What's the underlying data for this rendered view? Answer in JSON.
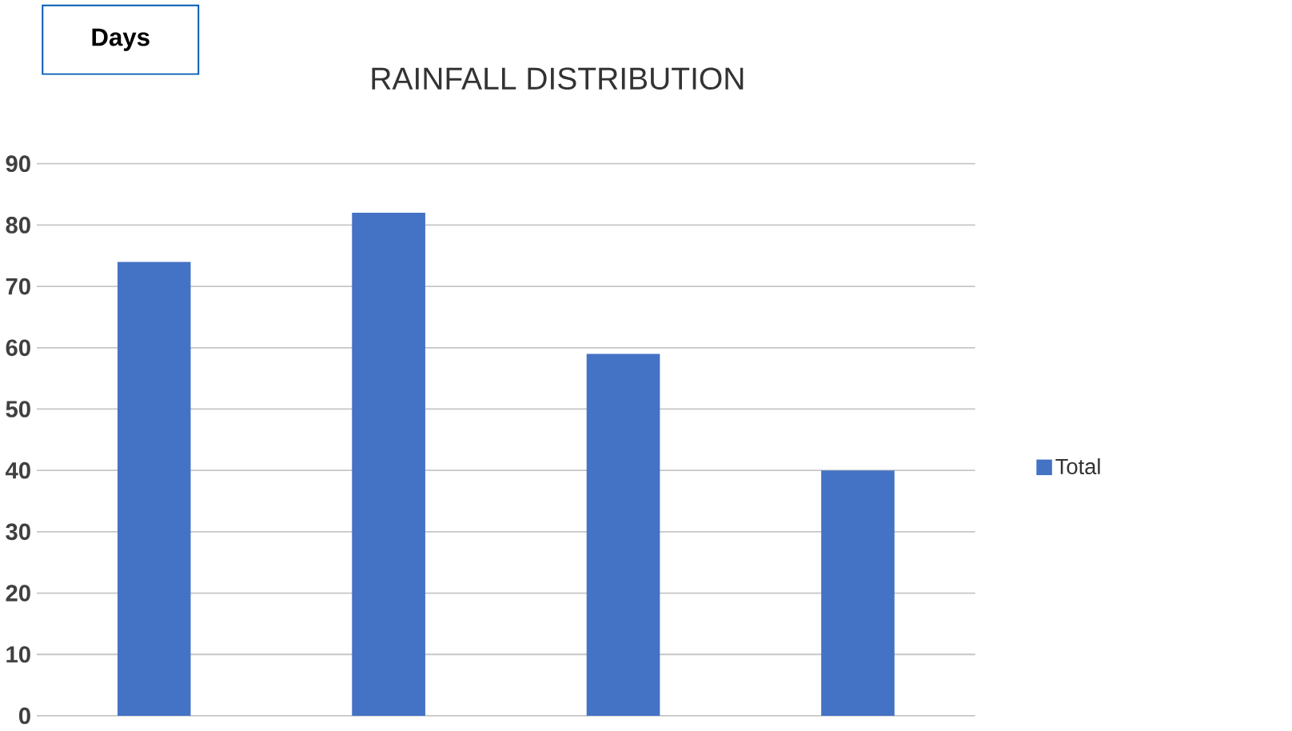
{
  "chart_data": {
    "type": "bar",
    "title": "RAINFALL DISTRIBUTION",
    "ylabel": "Days",
    "categories": [
      null,
      null,
      null,
      null
    ],
    "series": [
      {
        "name": "Total",
        "color": "#4472c4",
        "values": [
          74,
          82,
          59,
          40
        ]
      }
    ],
    "ylim": [
      0,
      90
    ],
    "yticks": [
      0,
      10,
      20,
      30,
      40,
      50,
      60,
      70,
      80,
      90
    ],
    "grid": "y",
    "legend": "right"
  }
}
